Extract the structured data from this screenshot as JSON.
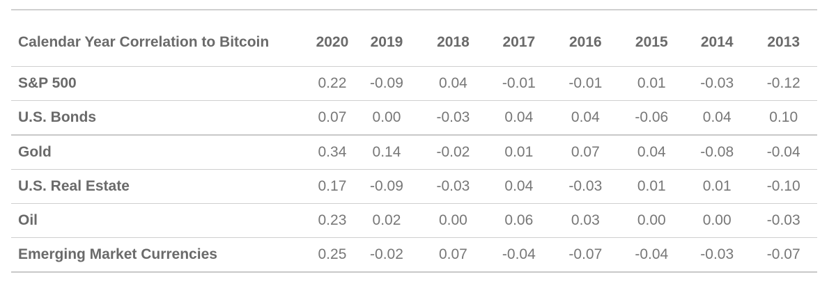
{
  "chart_data": {
    "type": "table",
    "header_label": "Calendar Year Correlation to Bitcoin",
    "columns": [
      "2020",
      "2019",
      "2018",
      "2017",
      "2016",
      "2015",
      "2014",
      "2013"
    ],
    "rows": [
      {
        "label": "S&P 500",
        "values": [
          "0.22",
          "-0.09",
          "0.04",
          "-0.01",
          "-0.01",
          "0.01",
          "-0.03",
          "-0.12"
        ]
      },
      {
        "label": "U.S. Bonds",
        "values": [
          "0.07",
          "0.00",
          "-0.03",
          "0.04",
          "0.04",
          "-0.06",
          "0.04",
          "0.10"
        ]
      },
      {
        "label": "Gold",
        "values": [
          "0.34",
          "0.14",
          "-0.02",
          "0.01",
          "0.07",
          "0.04",
          "-0.08",
          "-0.04"
        ]
      },
      {
        "label": "U.S. Real Estate",
        "values": [
          "0.17",
          "-0.09",
          "-0.03",
          "0.04",
          "-0.03",
          "0.01",
          "0.01",
          "-0.10"
        ]
      },
      {
        "label": "Oil",
        "values": [
          "0.23",
          "0.02",
          "0.00",
          "0.06",
          "0.03",
          "0.00",
          "0.00",
          "-0.03"
        ]
      },
      {
        "label": "Emerging Market Currencies",
        "values": [
          "0.25",
          "-0.02",
          "0.07",
          "-0.04",
          "-0.07",
          "-0.04",
          "-0.03",
          "-0.07"
        ]
      }
    ]
  }
}
